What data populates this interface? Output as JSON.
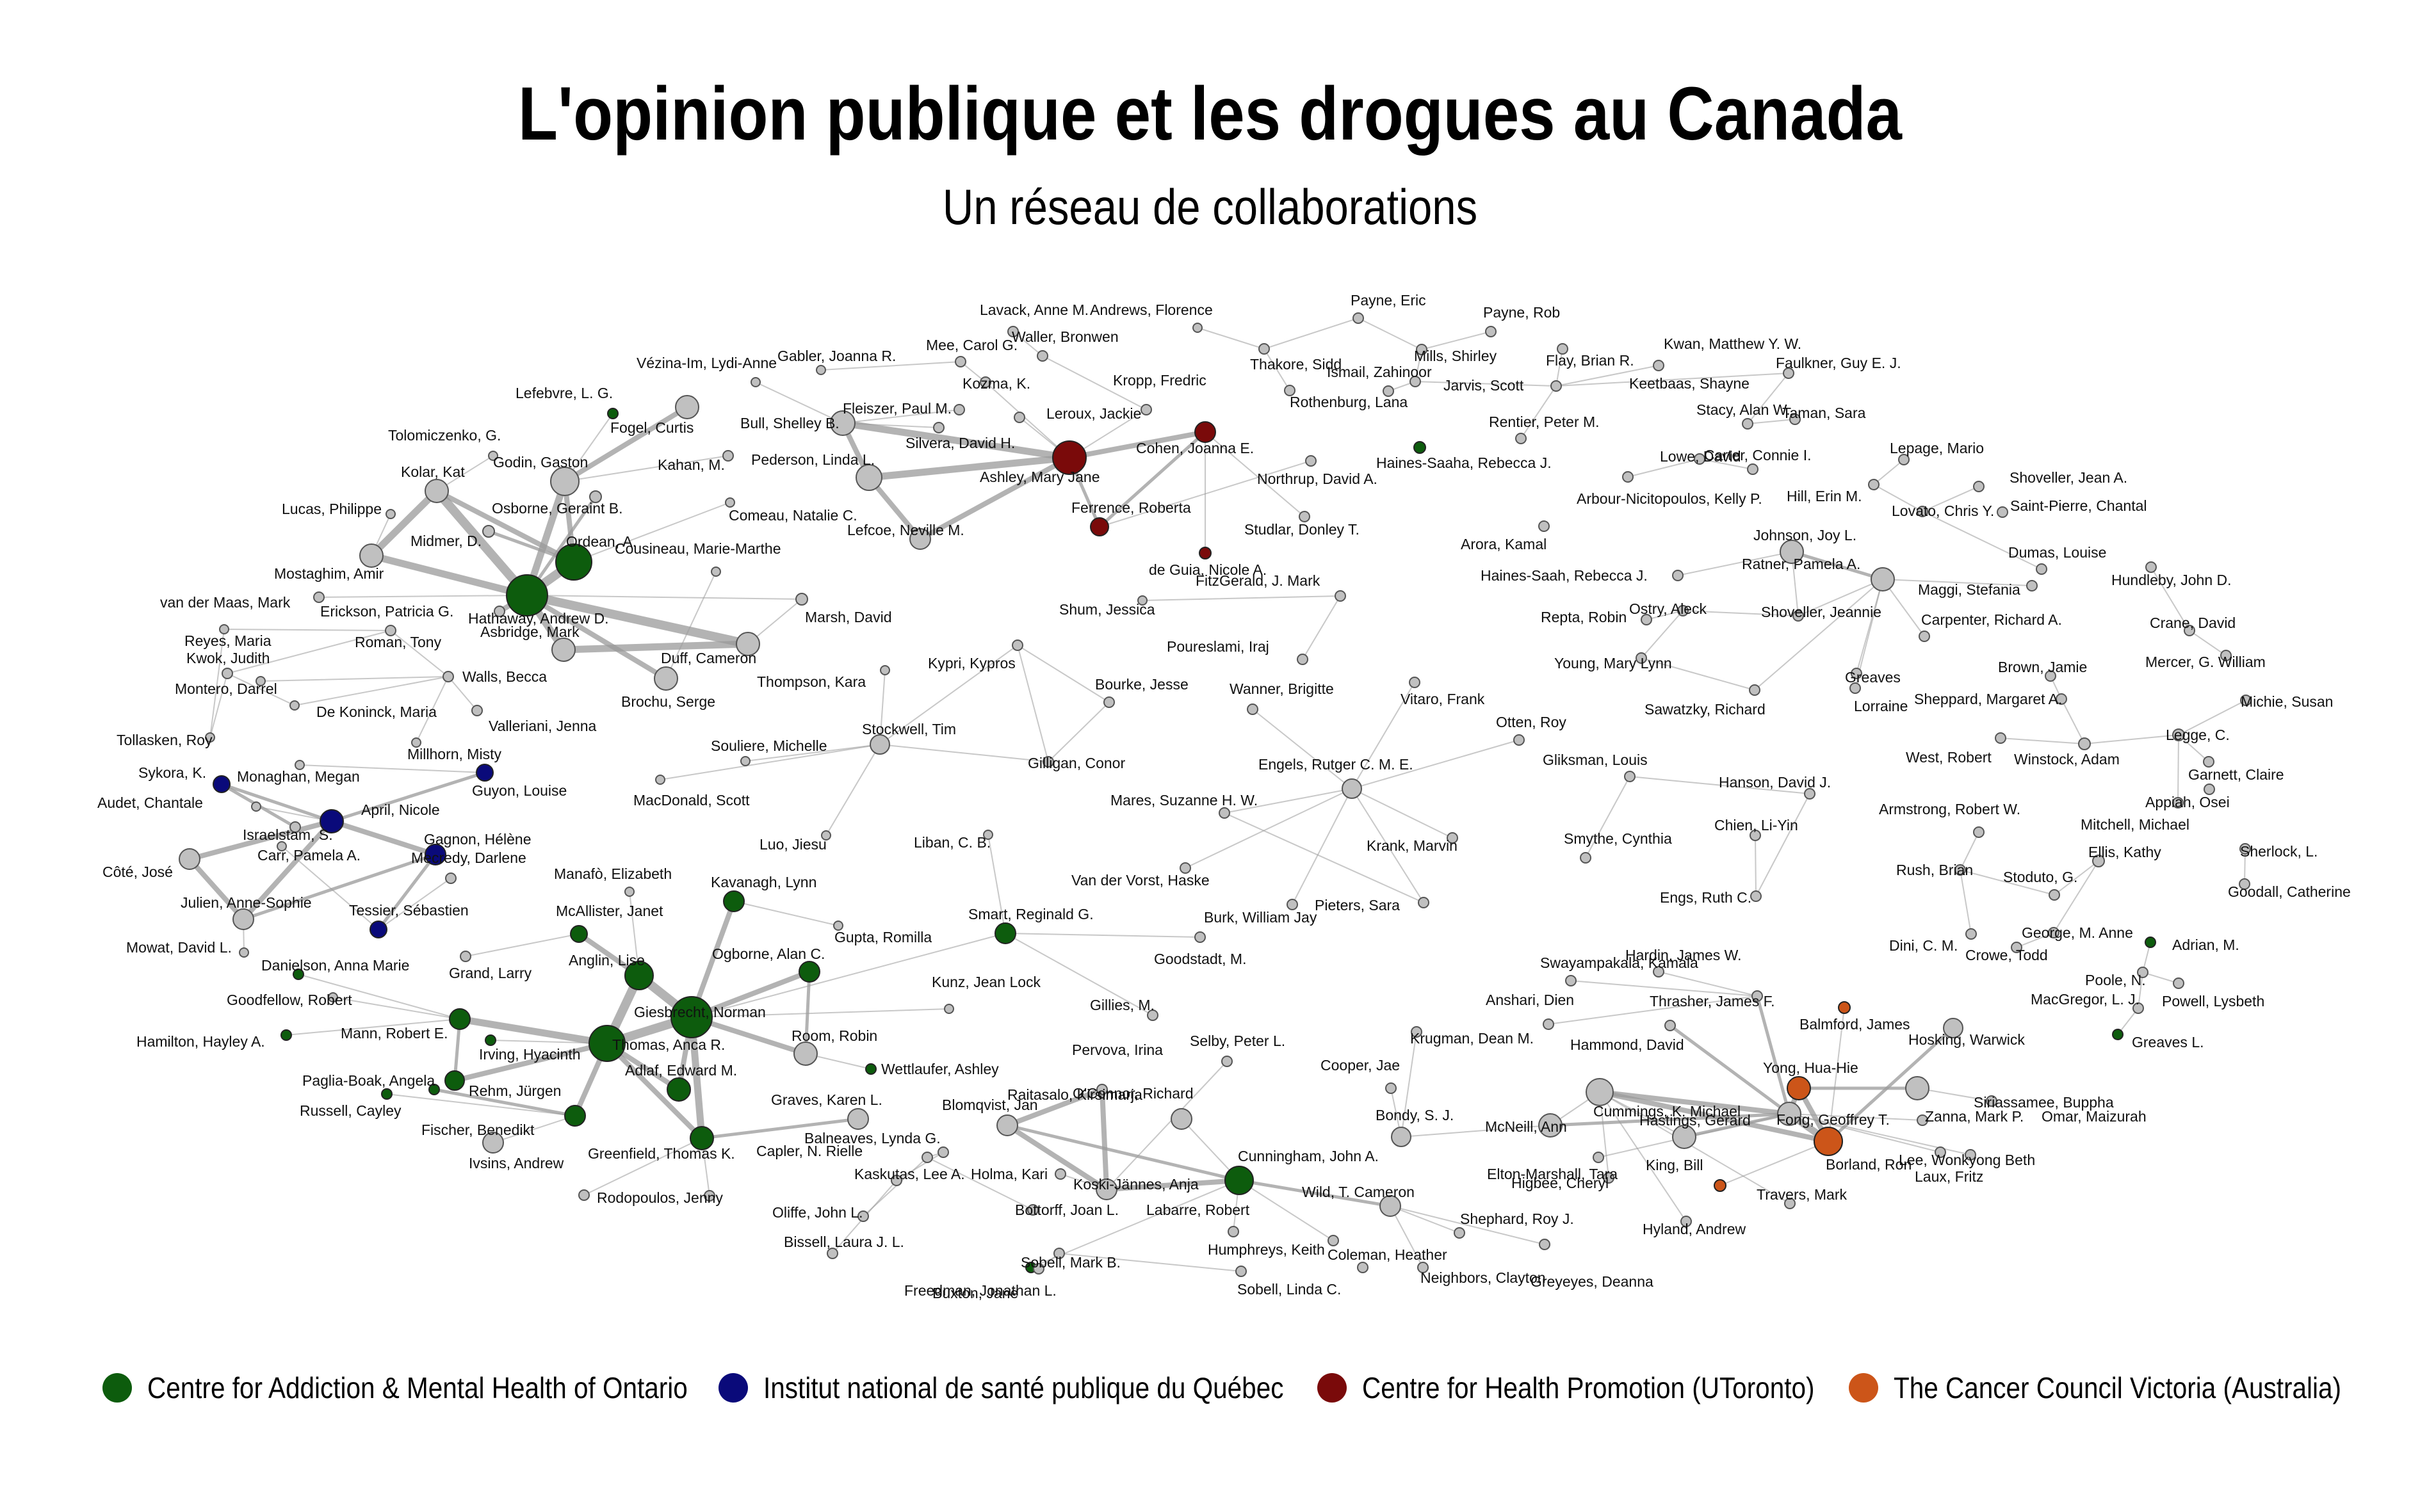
{
  "header": {
    "title": "L'opinion publique et les drogues au Canada",
    "subtitle": "Un réseau de collaborations"
  },
  "legend": [
    {
      "label": "Centre for Addiction & Mental Health of Ontario",
      "color": "#0d5c0d"
    },
    {
      "label": "Institut national de santé publique du Québec",
      "color": "#0a0a7a"
    },
    {
      "label": "Centre for Health Promotion (UToronto)",
      "color": "#7a0a0a"
    },
    {
      "label": "The Cancer Council Victoria (Australia)",
      "color": "#cc5519"
    }
  ],
  "colors": {
    "none": "#c0c0c0",
    "camh": "#0d5c0d",
    "inspq": "#0a0a7a",
    "chp": "#7a0a0a",
    "ccv": "#cc5519",
    "edge": "#9a9a9a"
  },
  "network": {
    "nodes": [
      {
        "name": "Lefebvre, L. G.",
        "group": "camh"
      },
      {
        "name": "Fogel, Curtis",
        "group": "none"
      },
      {
        "name": "Tolomiczenko, G.",
        "group": "none"
      },
      {
        "name": "Godin, Gaston",
        "group": "none"
      },
      {
        "name": "Kahan, M.",
        "group": "none"
      },
      {
        "name": "Kolar, Kat",
        "group": "none"
      },
      {
        "name": "Osborne, Geraint B.",
        "group": "none"
      },
      {
        "name": "Lucas, Philippe",
        "group": "none"
      },
      {
        "name": "Comeau, Natalie C.",
        "group": "none"
      },
      {
        "name": "Midmer, D.",
        "group": "none"
      },
      {
        "name": "Ordean, A.",
        "group": "camh"
      },
      {
        "name": "Mostaghim, Amir",
        "group": "none"
      },
      {
        "name": "Hathaway, Andrew D.",
        "group": "camh"
      },
      {
        "name": "Cousineau, Marie-Marthe",
        "group": "none"
      },
      {
        "name": "van der Maas, Mark",
        "group": "none"
      },
      {
        "name": "Erickson, Patricia G.",
        "group": "none"
      },
      {
        "name": "Marsh, David",
        "group": "none"
      },
      {
        "name": "Asbridge, Mark",
        "group": "none"
      },
      {
        "name": "Reyes, Maria",
        "group": "none"
      },
      {
        "name": "Roman, Tony",
        "group": "none"
      },
      {
        "name": "Duff, Cameron",
        "group": "none"
      },
      {
        "name": "Kwok, Judith",
        "group": "none"
      },
      {
        "name": "Walls, Becca",
        "group": "none"
      },
      {
        "name": "Montero, Darrel",
        "group": "none"
      },
      {
        "name": "Brochu, Serge",
        "group": "none"
      },
      {
        "name": "De Koninck, Maria",
        "group": "none"
      },
      {
        "name": "Valleriani, Jenna",
        "group": "none"
      },
      {
        "name": "Tollasken, Roy",
        "group": "none"
      },
      {
        "name": "Millhorn, Misty",
        "group": "none"
      },
      {
        "name": "Sykora, K.",
        "group": "inspq"
      },
      {
        "name": "Monaghan, Megan",
        "group": "none"
      },
      {
        "name": "Guyon, Louise",
        "group": "inspq"
      },
      {
        "name": "Audet, Chantale",
        "group": "none"
      },
      {
        "name": "April, Nicole",
        "group": "inspq"
      },
      {
        "name": "Israelstam, S.",
        "group": "none"
      },
      {
        "name": "Gagnon, Hélène",
        "group": "inspq"
      },
      {
        "name": "Côté, José",
        "group": "none"
      },
      {
        "name": "Carr, Pamela A.",
        "group": "none"
      },
      {
        "name": "Mecredy, Darlene",
        "group": "none"
      },
      {
        "name": "Julien, Anne-Sophie",
        "group": "none"
      },
      {
        "name": "Tessier, Sébastien",
        "group": "inspq"
      },
      {
        "name": "Mowat, David L.",
        "group": "none"
      },
      {
        "name": "Gabler, Joanna R.",
        "group": "none"
      },
      {
        "name": "Lavack, Anne M.",
        "group": "none"
      },
      {
        "name": "Waller, Bronwen",
        "group": "none"
      },
      {
        "name": "Mee, Carol G.",
        "group": "none"
      },
      {
        "name": "Vézina-Im, Lydi-Anne",
        "group": "none"
      },
      {
        "name": "Kozma, K.",
        "group": "none"
      },
      {
        "name": "Fleiszer, Paul M.",
        "group": "none"
      },
      {
        "name": "Kropp, Fredric",
        "group": "none"
      },
      {
        "name": "Leroux, Jackie",
        "group": "none"
      },
      {
        "name": "Bull, Shelley B.",
        "group": "none"
      },
      {
        "name": "Silvera, David H.",
        "group": "none"
      },
      {
        "name": "Cohen, Joanna E.",
        "group": "chp"
      },
      {
        "name": "Pederson, Linda L.",
        "group": "none"
      },
      {
        "name": "Ashley, Mary Jane",
        "group": "chp"
      },
      {
        "name": "Northrup, David A.",
        "group": "none"
      },
      {
        "name": "Lefcoe, Neville M.",
        "group": "none"
      },
      {
        "name": "Ferrence, Roberta",
        "group": "chp"
      },
      {
        "name": "Studlar, Donley T.",
        "group": "none"
      },
      {
        "name": "de Guia, Nicole A.",
        "group": "chp"
      },
      {
        "name": "Andrews, Florence",
        "group": "none"
      },
      {
        "name": "Payne, Eric",
        "group": "none"
      },
      {
        "name": "Payne, Rob",
        "group": "none"
      },
      {
        "name": "Thakore, Sidd",
        "group": "none"
      },
      {
        "name": "Mills, Shirley",
        "group": "none"
      },
      {
        "name": "Rothenburg, Lana",
        "group": "none"
      },
      {
        "name": "Jarvis, Scott",
        "group": "none"
      },
      {
        "name": "Ismail, Zahinoor",
        "group": "none"
      },
      {
        "name": "Haines-Saaha, Rebecca J.",
        "group": "camh"
      },
      {
        "name": "Kwan, Matthew Y. W.",
        "group": "none"
      },
      {
        "name": "Flay, Brian R.",
        "group": "none"
      },
      {
        "name": "Keetbaas, Shayne",
        "group": "none"
      },
      {
        "name": "Faulkner, Guy E. J.",
        "group": "none"
      },
      {
        "name": "Rentier, Peter M.",
        "group": "none"
      },
      {
        "name": "Stacy, Alan W.",
        "group": "none"
      },
      {
        "name": "Taman, Sara",
        "group": "none"
      },
      {
        "name": "Lowe, David",
        "group": "none"
      },
      {
        "name": "Carter, Connie I.",
        "group": "none"
      },
      {
        "name": "Lepage, Mario",
        "group": "none"
      },
      {
        "name": "Shoveller, Jean A.",
        "group": "none"
      },
      {
        "name": "Arbour-Nicitopoulos, Kelly P.",
        "group": "none"
      },
      {
        "name": "Hill, Erin M.",
        "group": "none"
      },
      {
        "name": "Lovato, Chris Y.",
        "group": "none"
      },
      {
        "name": "Saint-Pierre, Chantal",
        "group": "none"
      },
      {
        "name": "Arora, Kamal",
        "group": "none"
      },
      {
        "name": "Johnson, Joy L.",
        "group": "none"
      },
      {
        "name": "Dumas, Louise",
        "group": "none"
      },
      {
        "name": "Haines-Saah, Rebecca J.",
        "group": "none"
      },
      {
        "name": "Ratner, Pamela A.",
        "group": "none"
      },
      {
        "name": "Maggi, Stefania",
        "group": "none"
      },
      {
        "name": "Hundleby, John D.",
        "group": "none"
      },
      {
        "name": "Repta, Robin",
        "group": "none"
      },
      {
        "name": "Ostry, Aleck",
        "group": "none"
      },
      {
        "name": "Shoveller, Jeannie",
        "group": "none"
      },
      {
        "name": "Carpenter, Richard A.",
        "group": "none"
      },
      {
        "name": "Crane, David",
        "group": "none"
      },
      {
        "name": "Young, Mary Lynn",
        "group": "none"
      },
      {
        "name": "Greaves",
        "group": "none"
      },
      {
        "name": "Brown, Jamie",
        "group": "none"
      },
      {
        "name": "Mercer, G. William",
        "group": "none"
      },
      {
        "name": "Sawatzky, Richard",
        "group": "none"
      },
      {
        "name": "Lorraine",
        "group": "none"
      },
      {
        "name": "Sheppard, Margaret A.",
        "group": "none"
      },
      {
        "name": "Michie, Susan",
        "group": "none"
      },
      {
        "name": "FitzGerald, J. Mark",
        "group": "none"
      },
      {
        "name": "Shum, Jessica",
        "group": "none"
      },
      {
        "name": "Poureslami, Iraj",
        "group": "none"
      },
      {
        "name": "Legge, C.",
        "group": "none"
      },
      {
        "name": "West, Robert",
        "group": "none"
      },
      {
        "name": "Winstock, Adam",
        "group": "none"
      },
      {
        "name": "Garnett, Claire",
        "group": "none"
      },
      {
        "name": "Appiah, Osei",
        "group": "none"
      },
      {
        "name": "Mitchell, Michael",
        "group": "none"
      },
      {
        "name": "Kypri, Kypros",
        "group": "none"
      },
      {
        "name": "Bourke, Jesse",
        "group": "none"
      },
      {
        "name": "Thompson, Kara",
        "group": "none"
      },
      {
        "name": "Stockwell, Tim",
        "group": "none"
      },
      {
        "name": "Gilligan, Conor",
        "group": "none"
      },
      {
        "name": "Souliere, Michelle",
        "group": "none"
      },
      {
        "name": "MacDonald, Scott",
        "group": "none"
      },
      {
        "name": "Luo, Jiesu",
        "group": "none"
      },
      {
        "name": "Wanner, Brigitte",
        "group": "none"
      },
      {
        "name": "Vitaro, Frank",
        "group": "none"
      },
      {
        "name": "Otten, Roy",
        "group": "none"
      },
      {
        "name": "Engels, Rutger C. M. E.",
        "group": "none"
      },
      {
        "name": "Gliksman, Louis",
        "group": "none"
      },
      {
        "name": "Hanson, David J.",
        "group": "none"
      },
      {
        "name": "Smythe, Cynthia",
        "group": "none"
      },
      {
        "name": "Chien, Li-Yin",
        "group": "none"
      },
      {
        "name": "Engs, Ruth C.",
        "group": "none"
      },
      {
        "name": "Armstrong, Robert W.",
        "group": "none"
      },
      {
        "name": "Rush, Brian",
        "group": "none"
      },
      {
        "name": "Stoduto, G.",
        "group": "none"
      },
      {
        "name": "Ellis, Kathy",
        "group": "none"
      },
      {
        "name": "Sherlock, L.",
        "group": "none"
      },
      {
        "name": "Goodall, Catherine",
        "group": "none"
      },
      {
        "name": "Dini, C. M.",
        "group": "none"
      },
      {
        "name": "George, M. Anne",
        "group": "none"
      },
      {
        "name": "Adrian, M.",
        "group": "camh"
      },
      {
        "name": "Crowe, Todd",
        "group": "none"
      },
      {
        "name": "Poole, N.",
        "group": "none"
      },
      {
        "name": "Powell, Lysbeth",
        "group": "none"
      },
      {
        "name": "MacGregor, L. J.",
        "group": "none"
      },
      {
        "name": "Greaves L.",
        "group": "camh"
      },
      {
        "name": "Mares, Suzanne H. W.",
        "group": "none"
      },
      {
        "name": "Krank, Marvin",
        "group": "none"
      },
      {
        "name": "Van der Vorst, Haske",
        "group": "none"
      },
      {
        "name": "Pieters, Sara",
        "group": "none"
      },
      {
        "name": "Burk, William Jay",
        "group": "none"
      },
      {
        "name": "Liban, C. B.",
        "group": "none"
      },
      {
        "name": "Smart, Reginald G.",
        "group": "camh"
      },
      {
        "name": "Goodstadt, M.",
        "group": "none"
      },
      {
        "name": "Gillies, M.",
        "group": "none"
      },
      {
        "name": "Kunz, Jean Lock",
        "group": "none"
      },
      {
        "name": "Manafò, Elizabeth",
        "group": "none"
      },
      {
        "name": "Kavanagh, Lynn",
        "group": "camh"
      },
      {
        "name": "McAllister, Janet",
        "group": "camh"
      },
      {
        "name": "Gupta, Romilla",
        "group": "none"
      },
      {
        "name": "Danielson, Anna Marie",
        "group": "camh"
      },
      {
        "name": "Anglin, Lise",
        "group": "camh"
      },
      {
        "name": "Ogborne, Alan C.",
        "group": "camh"
      },
      {
        "name": "Grand, Larry",
        "group": "none"
      },
      {
        "name": "Giesbrecht, Norman",
        "group": "camh"
      },
      {
        "name": "Goodfellow, Robert",
        "group": "none"
      },
      {
        "name": "Mann, Robert E.",
        "group": "camh"
      },
      {
        "name": "Room, Robin",
        "group": "none"
      },
      {
        "name": "Thomas, Anca R.",
        "group": "camh"
      },
      {
        "name": "Hamilton, Hayley A.",
        "group": "camh"
      },
      {
        "name": "Irving, Hyacinth",
        "group": "camh"
      },
      {
        "name": "Wettlaufer, Ashley",
        "group": "camh"
      },
      {
        "name": "Paglia-Boak, Angela",
        "group": "camh"
      },
      {
        "name": "Adlaf, Edward M.",
        "group": "camh"
      },
      {
        "name": "Rehm, Jürgen",
        "group": "camh"
      },
      {
        "name": "Russell, Cayley",
        "group": "camh"
      },
      {
        "name": "Graves, Karen L.",
        "group": "none"
      },
      {
        "name": "Greenfield, Thomas K.",
        "group": "camh"
      },
      {
        "name": "Fischer, Benedikt",
        "group": "camh"
      },
      {
        "name": "Ivsins, Andrew",
        "group": "none"
      },
      {
        "name": "Rodopoulos, Jenny",
        "group": "none"
      },
      {
        "name": "Balneaves, Lynda G.",
        "group": "none"
      },
      {
        "name": "Capler, N. Rielle",
        "group": "none"
      },
      {
        "name": "Kaskutas, Lee A.",
        "group": "none"
      },
      {
        "name": "Oliffe, John L.",
        "group": "none"
      },
      {
        "name": "Bissell, Laura J. L.",
        "group": "none"
      },
      {
        "name": "Buxton, Jane",
        "group": "none"
      },
      {
        "name": "Selby, Peter L.",
        "group": "camh"
      },
      {
        "name": "Pervova, Irina",
        "group": "none"
      },
      {
        "name": "Raitasalo, Kirsimarja",
        "group": "none"
      },
      {
        "name": "Blomqvist, Jan",
        "group": "none"
      },
      {
        "name": "O'Connor, Richard",
        "group": "none"
      },
      {
        "name": "Holma, Kari",
        "group": "none"
      },
      {
        "name": "Koski-Jännes, Anja",
        "group": "none"
      },
      {
        "name": "Cunningham, John A.",
        "group": "camh"
      },
      {
        "name": "Wild, T. Cameron",
        "group": "none"
      },
      {
        "name": "Bottorff, Joan L.",
        "group": "none"
      },
      {
        "name": "Labarre, Robert",
        "group": "none"
      },
      {
        "name": "Humphreys, Keith",
        "group": "none"
      },
      {
        "name": "Coleman, Heather",
        "group": "none"
      },
      {
        "name": "Shephard, Roy J.",
        "group": "none"
      },
      {
        "name": "Sobell, Mark B.",
        "group": "none"
      },
      {
        "name": "Sobell, Linda C.",
        "group": "none"
      },
      {
        "name": "Neighbors, Clayton",
        "group": "none"
      },
      {
        "name": "Greyeyes, Deanna",
        "group": "none"
      },
      {
        "name": "Freedman, Jonathan L.",
        "group": "none"
      },
      {
        "name": "Cooper, Jae",
        "group": "none"
      },
      {
        "name": "Krugman, Dean M.",
        "group": "none"
      },
      {
        "name": "Bondy, S. J.",
        "group": "none"
      },
      {
        "name": "Swayampakala, Kamala",
        "group": "none"
      },
      {
        "name": "Hardin, James W.",
        "group": "none"
      },
      {
        "name": "Anshari, Dien",
        "group": "none"
      },
      {
        "name": "Thrasher, James F.",
        "group": "none"
      },
      {
        "name": "Balmford, James",
        "group": "ccv"
      },
      {
        "name": "Hammond, David",
        "group": "none"
      },
      {
        "name": "Hosking, Warwick",
        "group": "none"
      },
      {
        "name": "Cummings, K. Michael",
        "group": "none"
      },
      {
        "name": "Yong, Hua-Hie",
        "group": "ccv"
      },
      {
        "name": "Siriassamee, Buppha",
        "group": "none"
      },
      {
        "name": "Omar, Maizurah",
        "group": "none"
      },
      {
        "name": "Fong, Geoffrey T.",
        "group": "none"
      },
      {
        "name": "Zanna, Mark P.",
        "group": "none"
      },
      {
        "name": "McNeill, Ann",
        "group": "none"
      },
      {
        "name": "Hastings, Gerard",
        "group": "none"
      },
      {
        "name": "Elton-Marshall, Tara",
        "group": "none"
      },
      {
        "name": "Lee, Wonkyong Beth",
        "group": "none"
      },
      {
        "name": "Borland, Ron",
        "group": "ccv"
      },
      {
        "name": "Higbee, Cheryl",
        "group": "none"
      },
      {
        "name": "King, Bill",
        "group": "ccv"
      },
      {
        "name": "Laux, Fritz",
        "group": "none"
      },
      {
        "name": "Travers, Mark",
        "group": "none"
      },
      {
        "name": "Hyland, Andrew",
        "group": "none"
      }
    ]
  }
}
